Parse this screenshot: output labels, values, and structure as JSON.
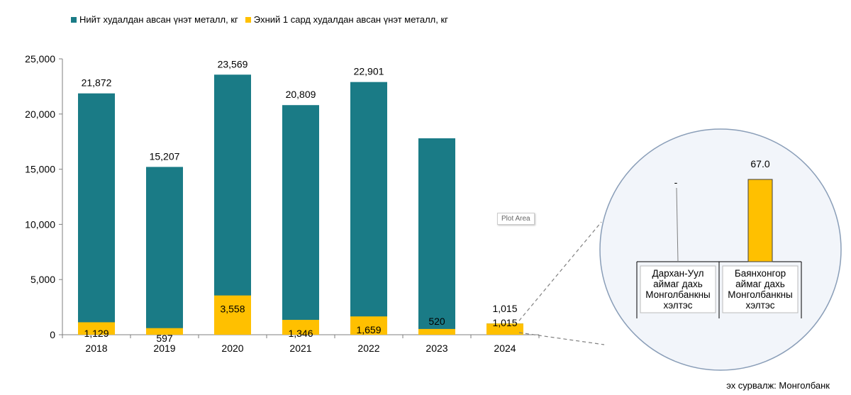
{
  "legend": {
    "total_label": "Нийт худалдан авсан үнэт металл, кг",
    "h1_label": "Эхний 1 сард худалдан авсан үнэт металл, кг"
  },
  "colors": {
    "total": "#1a7b86",
    "h1": "#ffc000",
    "axis": "#7f7f7f",
    "zoom_border": "#8a9eb8",
    "zoom_fill": "#f2f5fa"
  },
  "chart_data": {
    "type": "bar",
    "categories": [
      "2018",
      "2019",
      "2020",
      "2021",
      "2022",
      "2023",
      "2024"
    ],
    "series": [
      {
        "name": "Нийт худалдан авсан үнэт металл, кг",
        "values": [
          21872,
          15207,
          23569,
          20809,
          22901,
          17800,
          1015
        ],
        "labels": [
          "21,872",
          "15,207",
          "23,569",
          "20,809",
          "22,901",
          "",
          "1,015"
        ]
      },
      {
        "name": "Эхний 1 сард худалдан авсан үнэт металл, кг",
        "values": [
          1129,
          597,
          3558,
          1346,
          1659,
          520,
          1015
        ],
        "labels": [
          "1,129",
          "597",
          "3,558",
          "1,346",
          "1,659",
          "520",
          "1,015"
        ]
      }
    ],
    "ylim": [
      0,
      25000
    ],
    "yticks": [
      0,
      5000,
      10000,
      15000,
      20000,
      25000
    ],
    "ytick_labels": [
      "0",
      "5,000",
      "10,000",
      "15,000",
      "20,000",
      "25,000"
    ],
    "inset": {
      "type": "bar",
      "categories": [
        "Дархан-Уул аймаг дахь Монголбанкны хэлтэс",
        "Баянхонгор аймаг дахь Монголбанкны хэлтэс"
      ],
      "category_lines": [
        [
          "Дархан-Уул",
          "аймаг дахь",
          "Монголбанкны",
          "хэлтэс"
        ],
        [
          "Баянхонгор",
          "аймаг дахь",
          "Монголбанкны",
          "хэлтэс"
        ]
      ],
      "values": [
        0,
        67.0
      ],
      "labels": [
        "-",
        "67.0"
      ]
    }
  },
  "tooltip": "Plot Area",
  "source": "эх сурвалж: Монголбанк"
}
